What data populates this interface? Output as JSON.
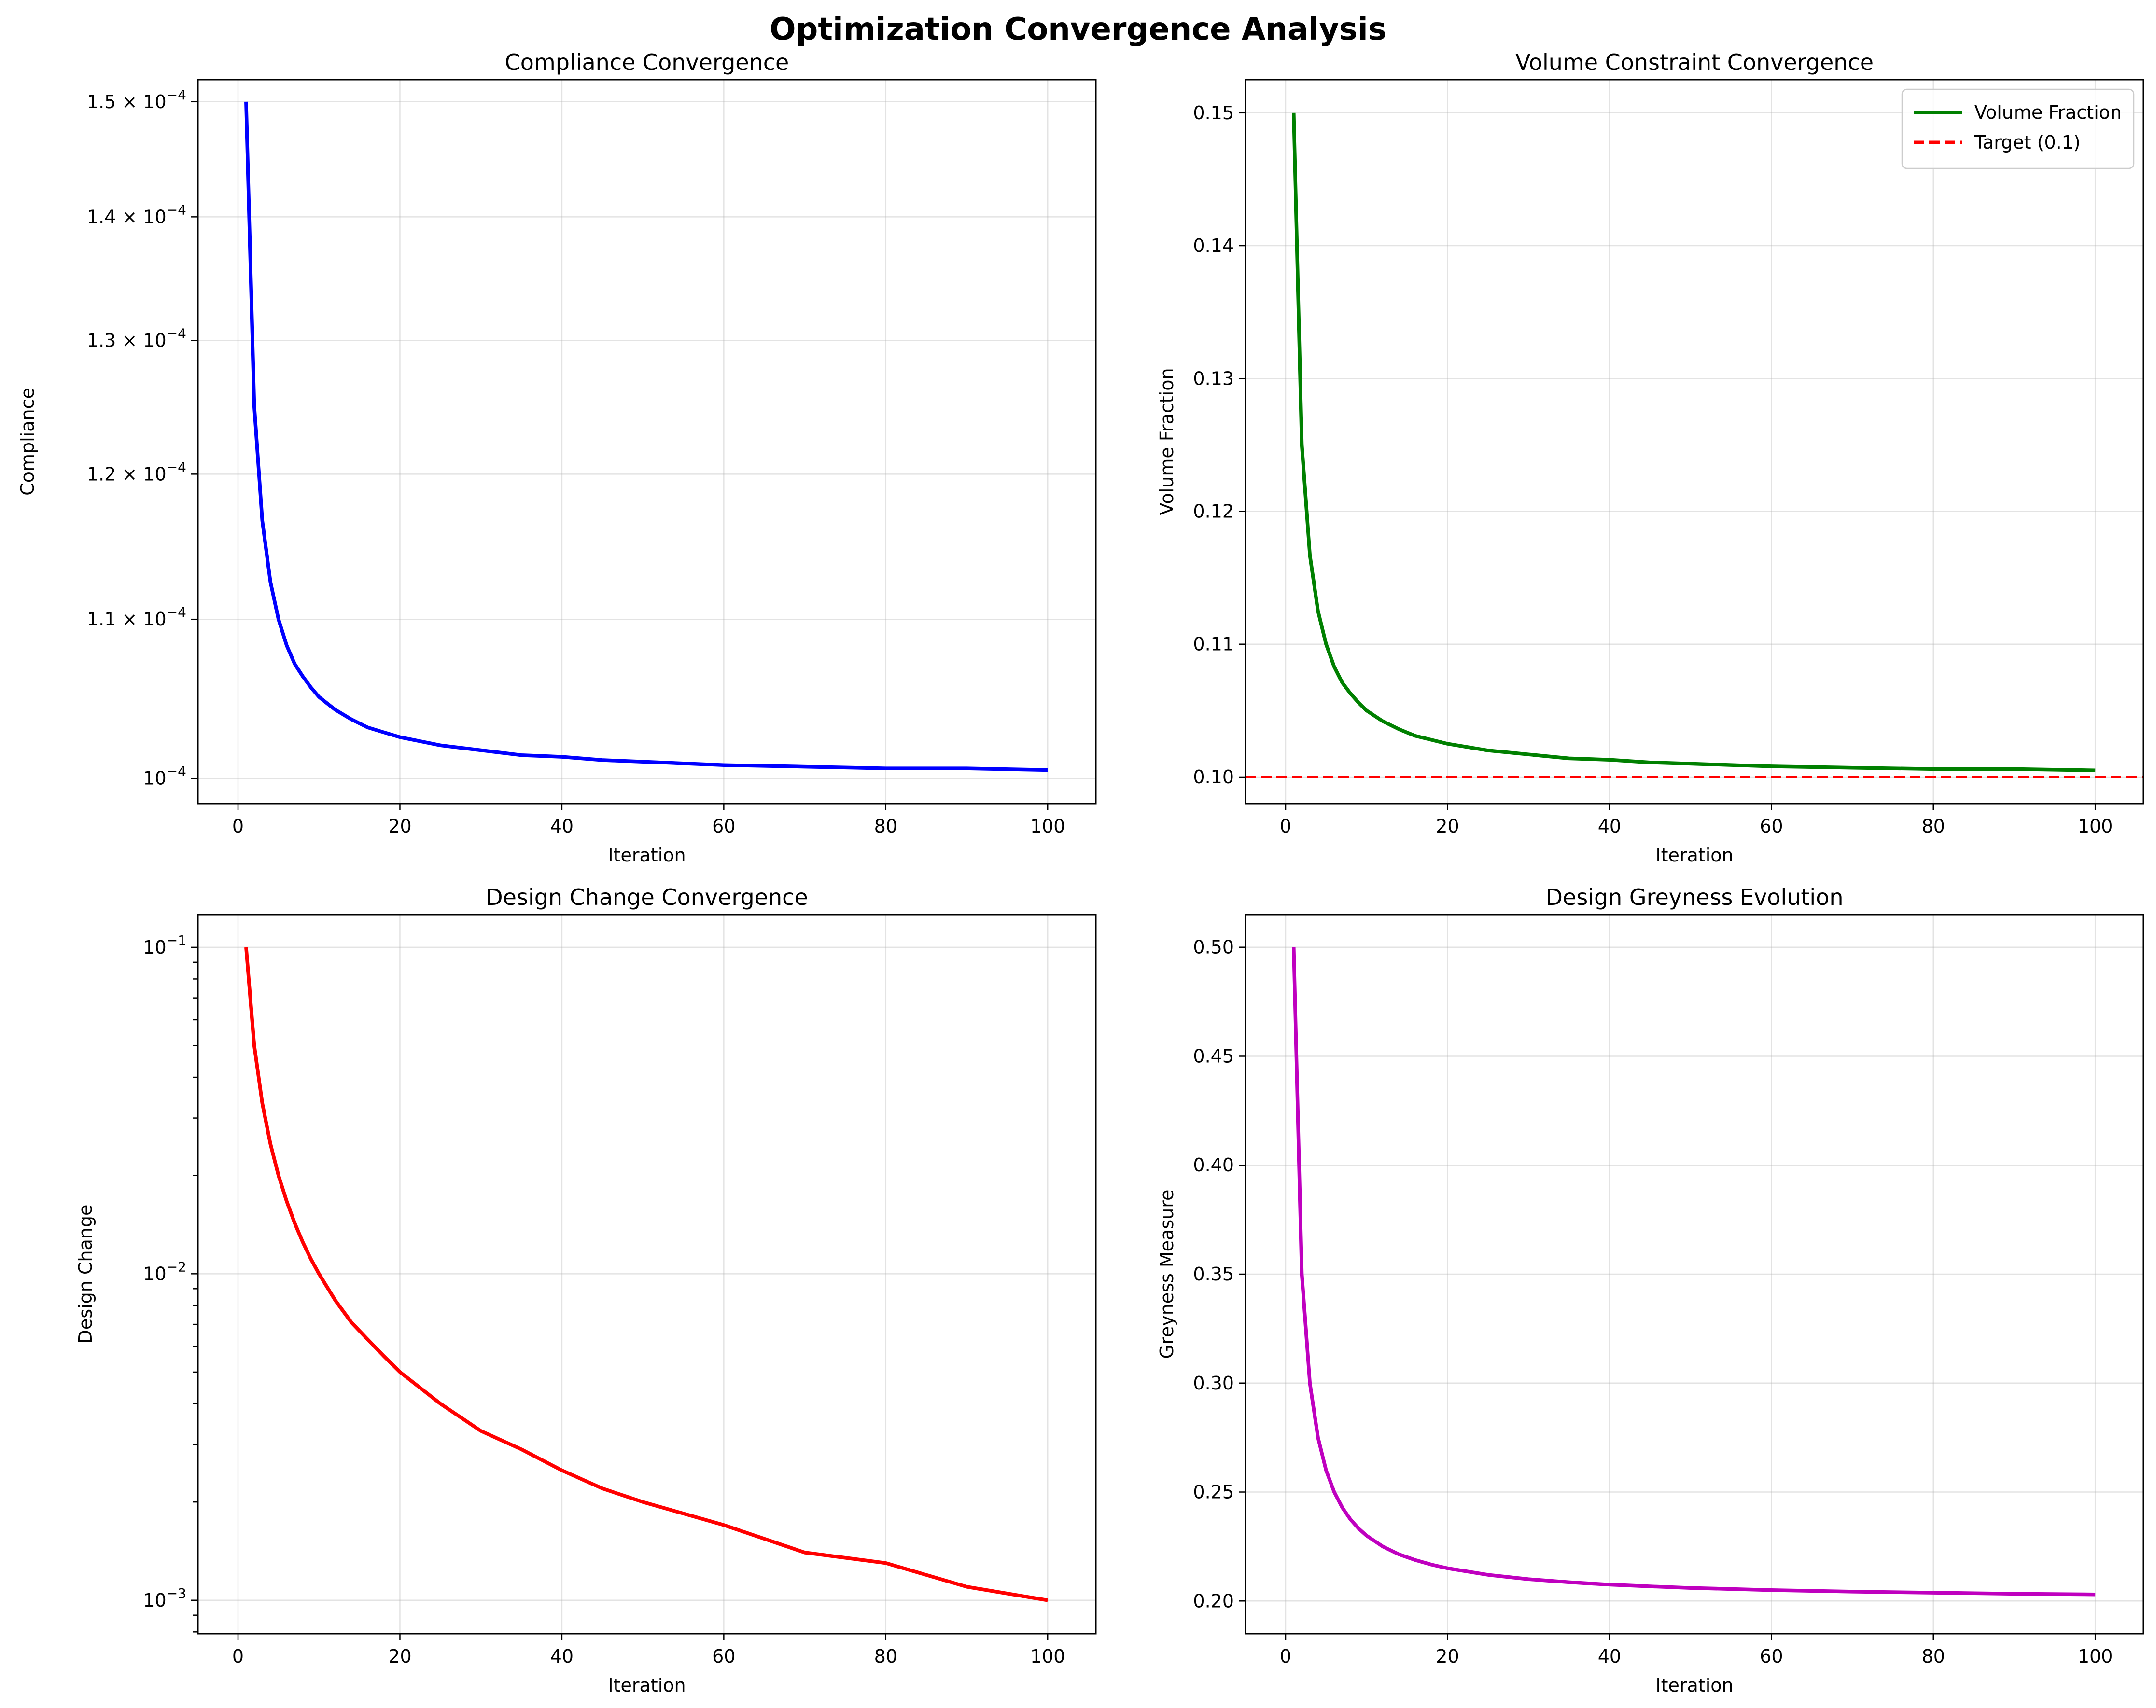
{
  "figure": {
    "title": "Optimization Convergence Analysis"
  },
  "chart_data": [
    {
      "type": "line",
      "title": "Compliance Convergence",
      "xlabel": "Iteration",
      "ylabel": "Compliance",
      "xlim": [
        -4.95,
        105.95
      ],
      "ylim": [
        9.85e-05,
        0.000152
      ],
      "yscale": "log",
      "grid": true,
      "xticks": [
        {
          "value": 0,
          "label": "0"
        },
        {
          "value": 20,
          "label": "20"
        },
        {
          "value": 40,
          "label": "40"
        },
        {
          "value": 60,
          "label": "60"
        },
        {
          "value": 80,
          "label": "80"
        },
        {
          "value": 100,
          "label": "100"
        }
      ],
      "yticks": [
        {
          "value": 0.0001,
          "mant": "",
          "exp": "−4"
        },
        {
          "value": 0.00011,
          "mant": "1.1",
          "exp": "−4"
        },
        {
          "value": 0.00012,
          "mant": "1.2",
          "exp": "−4"
        },
        {
          "value": 0.00013,
          "mant": "1.3",
          "exp": "−4"
        },
        {
          "value": 0.00014,
          "mant": "1.4",
          "exp": "−4"
        },
        {
          "value": 0.00015,
          "mant": "1.5",
          "exp": "−4"
        }
      ],
      "series": [
        {
          "color": "#0000ff",
          "style": "solid",
          "x": [
            1,
            2,
            3,
            4,
            5,
            6,
            7,
            8,
            9,
            10,
            12,
            14,
            16,
            18,
            20,
            25,
            30,
            35,
            40,
            45,
            50,
            60,
            70,
            80,
            90,
            100
          ],
          "y": [
            0.00015,
            0.000125,
            0.0001167,
            0.0001125,
            0.00011,
            0.0001083,
            0.0001071,
            0.0001063,
            0.0001056,
            0.000105,
            0.0001042,
            0.0001036,
            0.0001031,
            0.0001028,
            0.0001025,
            0.000102,
            0.0001017,
            0.0001014,
            0.0001013,
            0.0001011,
            0.000101,
            0.0001008,
            0.0001007,
            0.0001006,
            0.0001006,
            0.0001005
          ]
        }
      ]
    },
    {
      "type": "line",
      "title": "Volume Constraint Convergence",
      "xlabel": "Iteration",
      "ylabel": "Volume Fraction",
      "xlim": [
        -4.95,
        105.95
      ],
      "ylim": [
        0.098,
        0.1525
      ],
      "yscale": "linear",
      "grid": true,
      "legend": "top-right",
      "xticks": [
        {
          "value": 0,
          "label": "0"
        },
        {
          "value": 20,
          "label": "20"
        },
        {
          "value": 40,
          "label": "40"
        },
        {
          "value": 60,
          "label": "60"
        },
        {
          "value": 80,
          "label": "80"
        },
        {
          "value": 100,
          "label": "100"
        }
      ],
      "yticks": [
        {
          "value": 0.1,
          "label": "0.10"
        },
        {
          "value": 0.11,
          "label": "0.11"
        },
        {
          "value": 0.12,
          "label": "0.12"
        },
        {
          "value": 0.13,
          "label": "0.13"
        },
        {
          "value": 0.14,
          "label": "0.14"
        },
        {
          "value": 0.15,
          "label": "0.15"
        }
      ],
      "series": [
        {
          "name": "Volume Fraction",
          "color": "#008000",
          "style": "solid",
          "x": [
            1,
            2,
            3,
            4,
            5,
            6,
            7,
            8,
            9,
            10,
            12,
            14,
            16,
            18,
            20,
            25,
            30,
            35,
            40,
            45,
            50,
            60,
            70,
            80,
            90,
            100
          ],
          "y": [
            0.15,
            0.125,
            0.1167,
            0.1125,
            0.11,
            0.1083,
            0.1071,
            0.1063,
            0.1056,
            0.105,
            0.1042,
            0.1036,
            0.1031,
            0.1028,
            0.1025,
            0.102,
            0.1017,
            0.1014,
            0.1013,
            0.1011,
            0.101,
            0.1008,
            0.1007,
            0.1006,
            0.1006,
            0.1005
          ]
        }
      ],
      "reference_lines": [
        {
          "name": "Target (0.1)",
          "y": 0.1,
          "color": "#ff0000",
          "style": "dashed"
        }
      ]
    },
    {
      "type": "line",
      "title": "Design Change Convergence",
      "xlabel": "Iteration",
      "ylabel": "Design Change",
      "xlim": [
        -4.95,
        105.95
      ],
      "ylim": [
        0.00079,
        0.126
      ],
      "yscale": "log",
      "grid": true,
      "xticks": [
        {
          "value": 0,
          "label": "0"
        },
        {
          "value": 20,
          "label": "20"
        },
        {
          "value": 40,
          "label": "40"
        },
        {
          "value": 60,
          "label": "60"
        },
        {
          "value": 80,
          "label": "80"
        },
        {
          "value": 100,
          "label": "100"
        }
      ],
      "yticks": [
        {
          "value": 0.001,
          "mant": "",
          "exp": "−3"
        },
        {
          "value": 0.01,
          "mant": "",
          "exp": "−2"
        },
        {
          "value": 0.1,
          "mant": "",
          "exp": "−1"
        }
      ],
      "series": [
        {
          "color": "#ff0000",
          "style": "solid",
          "x": [
            1,
            2,
            3,
            4,
            5,
            6,
            7,
            8,
            9,
            10,
            12,
            14,
            16,
            18,
            20,
            25,
            30,
            35,
            40,
            45,
            50,
            60,
            70,
            80,
            90,
            100
          ],
          "y": [
            0.1,
            0.05,
            0.0333,
            0.025,
            0.02,
            0.0167,
            0.0143,
            0.0125,
            0.0111,
            0.01,
            0.0083,
            0.0071,
            0.0063,
            0.0056,
            0.005,
            0.004,
            0.0033,
            0.0029,
            0.0025,
            0.0022,
            0.002,
            0.0017,
            0.0014,
            0.0013,
            0.0011,
            0.001
          ]
        }
      ]
    },
    {
      "type": "line",
      "title": "Design Greyness Evolution",
      "xlabel": "Iteration",
      "ylabel": "Greyness Measure",
      "xlim": [
        -4.95,
        105.95
      ],
      "ylim": [
        0.185,
        0.515
      ],
      "yscale": "linear",
      "grid": true,
      "xticks": [
        {
          "value": 0,
          "label": "0"
        },
        {
          "value": 20,
          "label": "20"
        },
        {
          "value": 40,
          "label": "40"
        },
        {
          "value": 60,
          "label": "60"
        },
        {
          "value": 80,
          "label": "80"
        },
        {
          "value": 100,
          "label": "100"
        }
      ],
      "yticks": [
        {
          "value": 0.2,
          "label": "0.20"
        },
        {
          "value": 0.25,
          "label": "0.25"
        },
        {
          "value": 0.3,
          "label": "0.30"
        },
        {
          "value": 0.35,
          "label": "0.35"
        },
        {
          "value": 0.4,
          "label": "0.40"
        },
        {
          "value": 0.45,
          "label": "0.45"
        },
        {
          "value": 0.5,
          "label": "0.50"
        }
      ],
      "series": [
        {
          "color": "#bf00bf",
          "style": "solid",
          "x": [
            1,
            2,
            3,
            4,
            5,
            6,
            7,
            8,
            9,
            10,
            12,
            14,
            16,
            18,
            20,
            25,
            30,
            35,
            40,
            45,
            50,
            60,
            70,
            80,
            90,
            100
          ],
          "y": [
            0.5,
            0.35,
            0.3,
            0.275,
            0.26,
            0.25,
            0.2429,
            0.2375,
            0.2333,
            0.23,
            0.225,
            0.2214,
            0.2188,
            0.2167,
            0.215,
            0.212,
            0.21,
            0.2086,
            0.2075,
            0.2067,
            0.206,
            0.205,
            0.2043,
            0.2038,
            0.2033,
            0.203
          ]
        }
      ]
    }
  ]
}
